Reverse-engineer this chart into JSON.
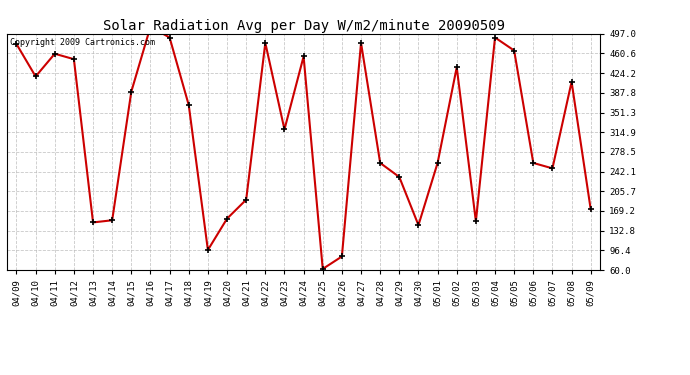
{
  "title": "Solar Radiation Avg per Day W/m2/minute 20090509",
  "copyright_text": "Copyright 2009 Cartronics.com",
  "labels": [
    "04/09",
    "04/10",
    "04/11",
    "04/12",
    "04/13",
    "04/14",
    "04/15",
    "04/16",
    "04/17",
    "04/18",
    "04/19",
    "04/20",
    "04/21",
    "04/22",
    "04/23",
    "04/24",
    "04/25",
    "04/26",
    "04/27",
    "04/28",
    "04/29",
    "04/30",
    "05/01",
    "05/02",
    "05/03",
    "05/04",
    "05/05",
    "05/06",
    "05/07",
    "05/08",
    "05/09"
  ],
  "values": [
    478,
    418,
    460,
    450,
    148,
    152,
    390,
    510,
    490,
    365,
    97,
    155,
    190,
    480,
    320,
    455,
    62,
    85,
    480,
    258,
    232,
    143,
    258,
    435,
    150,
    490,
    466,
    258,
    248,
    408,
    172
  ],
  "line_color": "#cc0000",
  "marker": "+",
  "marker_color": "#000000",
  "background_color": "#ffffff",
  "grid_color": "#bbbbbb",
  "ylim_min": 60.0,
  "ylim_max": 497.0,
  "yticks": [
    60.0,
    96.4,
    132.8,
    169.2,
    205.7,
    242.1,
    278.5,
    314.9,
    351.3,
    387.8,
    424.2,
    460.6,
    497.0
  ],
  "title_fontsize": 10,
  "copyright_fontsize": 6,
  "tick_fontsize": 6.5,
  "line_width": 1.5
}
